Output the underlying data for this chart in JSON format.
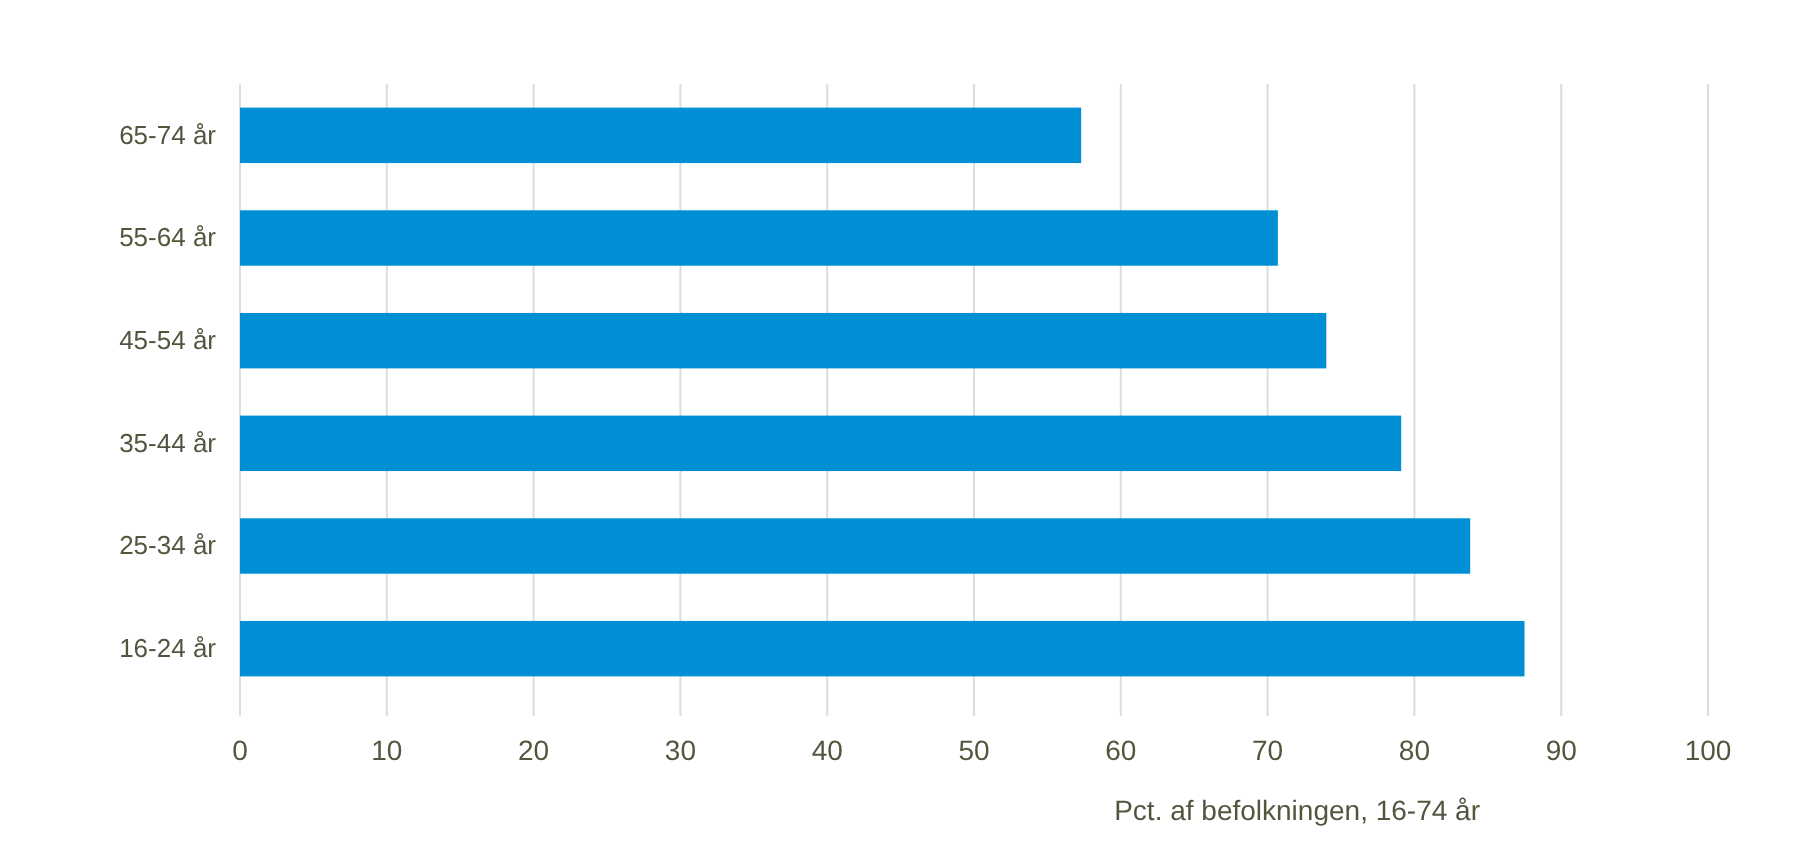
{
  "chart_data": {
    "type": "bar",
    "orientation": "horizontal",
    "categories": [
      "65-74 år",
      "55-64 år",
      "45-54 år",
      "35-44 år",
      "25-34 år",
      "16-24 år"
    ],
    "values": [
      57.3,
      70.7,
      74.0,
      79.1,
      83.8,
      87.5
    ],
    "color": "#008fd5",
    "xlim": [
      0,
      100
    ],
    "xticks": [
      0,
      10,
      20,
      30,
      40,
      50,
      60,
      70,
      80,
      90,
      100
    ],
    "xlabel": "Pct. af befolkningen, 16-74 år",
    "grid": "x"
  }
}
